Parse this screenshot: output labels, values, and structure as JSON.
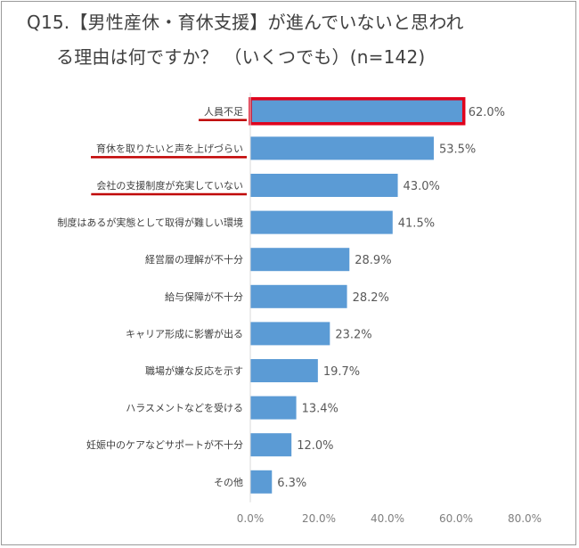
{
  "title_line1": "Q15.【男性産休・育休支援】が進んでいないと思われ",
  "title_line2": "る理由は何ですか？ （いくつでも）(n=142)",
  "colors": {
    "bar": "#5b9bd5",
    "highlight_box": "#e0001b",
    "underline": "#c00000",
    "axis": "#d9d9d9",
    "text": "#404040"
  },
  "chart_data": {
    "type": "bar",
    "orientation": "horizontal",
    "categories": [
      "人員不足",
      "育休を取りたいと声を上げづらい",
      "会社の支援制度が充実していない",
      "制度はあるが実態として取得が難しい環境",
      "経営層の理解が不十分",
      "給与保障が不十分",
      "キャリア形成に影響が出る",
      "職場が嫌な反応を示す",
      "ハラスメントなどを受ける",
      "妊娠中のケアなどサポートが不十分",
      "その他"
    ],
    "values": [
      62.0,
      53.5,
      43.0,
      41.5,
      28.9,
      28.2,
      23.2,
      19.7,
      13.4,
      12.0,
      6.3
    ],
    "value_labels": [
      "62.0%",
      "53.5%",
      "43.0%",
      "41.5%",
      "28.9%",
      "28.2%",
      "23.2%",
      "19.7%",
      "13.4%",
      "12.0%",
      "6.3%"
    ],
    "xlim": [
      0,
      80
    ],
    "x_ticks": [
      0,
      20,
      40,
      60,
      80
    ],
    "x_tick_labels": [
      "0.0%",
      "20.0%",
      "40.0%",
      "60.0%",
      "80.0%"
    ],
    "highlighted_bars": [
      "人員不足"
    ],
    "underlined_categories": [
      "人員不足",
      "育休を取りたいと声を上げづらい",
      "会社の支援制度が充実していない"
    ],
    "grid": false,
    "legend": "none"
  }
}
